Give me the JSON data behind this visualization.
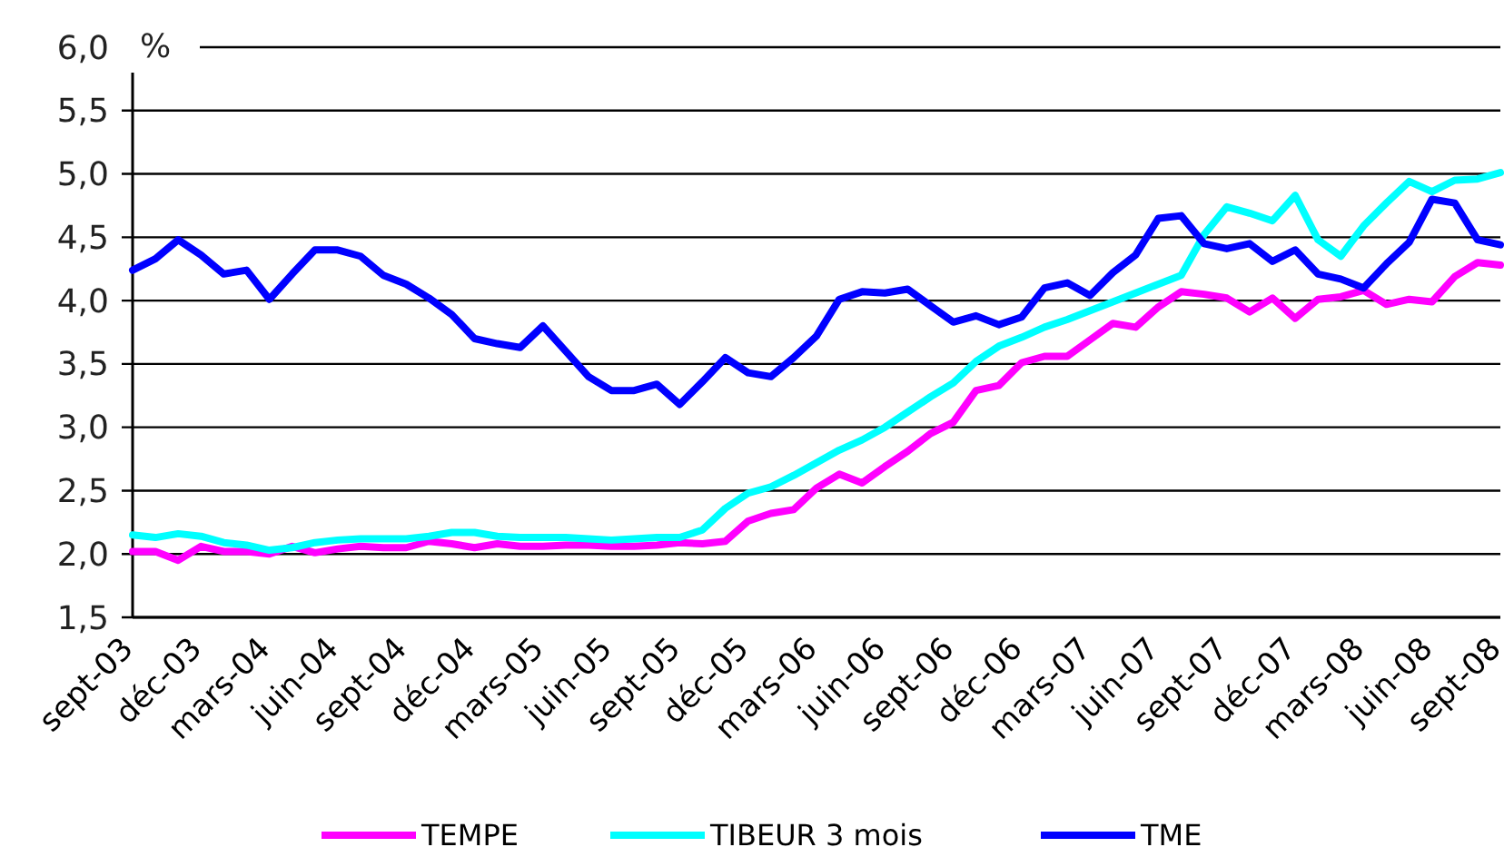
{
  "chart_data": {
    "type": "line",
    "ylabel": "%",
    "categories": [
      "sept-03",
      null,
      null,
      "déc-03",
      null,
      null,
      "mars-04",
      null,
      null,
      "juin-04",
      null,
      null,
      "sept-04",
      null,
      null,
      "déc-04",
      null,
      null,
      "mars-05",
      null,
      null,
      "juin-05",
      null,
      null,
      "sept-05",
      null,
      null,
      "déc-05",
      null,
      null,
      "mars-06",
      null,
      null,
      "juin-06",
      null,
      null,
      "sept-06",
      null,
      null,
      "déc-06",
      null,
      null,
      "mars-07",
      null,
      null,
      "juin-07",
      null,
      null,
      "sept-07",
      null,
      null,
      "déc-07",
      null,
      null,
      "mars-08",
      null,
      null,
      "juin-08",
      null,
      null,
      "sept-08"
    ],
    "series": [
      {
        "name": "TEMPE",
        "color": "#ff00ff",
        "values": [
          2.02,
          2.02,
          1.95,
          2.06,
          2.02,
          2.02,
          2.0,
          2.06,
          2.01,
          2.04,
          2.06,
          2.05,
          2.05,
          2.1,
          2.08,
          2.05,
          2.08,
          2.06,
          2.06,
          2.07,
          2.07,
          2.06,
          2.06,
          2.07,
          2.09,
          2.08,
          2.1,
          2.26,
          2.32,
          2.35,
          2.52,
          2.63,
          2.56,
          2.69,
          2.81,
          2.95,
          3.04,
          3.29,
          3.33,
          3.51,
          3.56,
          3.56,
          3.69,
          3.82,
          3.79,
          3.95,
          4.07,
          4.05,
          4.02,
          3.91,
          4.02,
          3.86,
          4.01,
          4.03,
          4.08,
          3.97,
          4.01,
          3.99,
          4.19,
          4.3,
          4.28
        ]
      },
      {
        "name": "TIBEUR 3 mois",
        "color": "#00ffff",
        "values": [
          2.15,
          2.13,
          2.16,
          2.14,
          2.09,
          2.07,
          2.03,
          2.05,
          2.09,
          2.11,
          2.12,
          2.12,
          2.12,
          2.14,
          2.17,
          2.17,
          2.14,
          2.13,
          2.13,
          2.13,
          2.12,
          2.11,
          2.12,
          2.13,
          2.13,
          2.19,
          2.36,
          2.48,
          2.53,
          2.62,
          2.72,
          2.82,
          2.9,
          3.0,
          3.12,
          3.24,
          3.35,
          3.52,
          3.64,
          3.71,
          3.79,
          3.85,
          3.92,
          3.99,
          4.06,
          4.13,
          4.2,
          4.52,
          4.74,
          4.69,
          4.63,
          4.83,
          4.48,
          4.35,
          4.59,
          4.77,
          4.94,
          4.86,
          4.95,
          4.96,
          5.01
        ]
      },
      {
        "name": "TME",
        "color": "#0000ff",
        "values": [
          4.24,
          4.33,
          4.48,
          4.36,
          4.21,
          4.24,
          4.01,
          4.21,
          4.4,
          4.4,
          4.35,
          4.2,
          4.13,
          4.02,
          3.89,
          3.7,
          3.66,
          3.63,
          3.8,
          3.6,
          3.4,
          3.29,
          3.29,
          3.34,
          3.18,
          3.36,
          3.55,
          3.43,
          3.4,
          3.55,
          3.72,
          4.01,
          4.07,
          4.06,
          4.09,
          3.96,
          3.83,
          3.88,
          3.81,
          3.87,
          4.1,
          4.14,
          4.04,
          4.22,
          4.36,
          4.65,
          4.67,
          4.45,
          4.41,
          4.45,
          4.31,
          4.4,
          4.21,
          4.17,
          4.1,
          4.29,
          4.46,
          4.8,
          4.77,
          4.48,
          4.44
        ]
      }
    ],
    "ylim": [
      1.5,
      6.0
    ],
    "yticks": [
      {
        "value": 1.5,
        "label": "1,5"
      },
      {
        "value": 2.0,
        "label": "2,0"
      },
      {
        "value": 2.5,
        "label": "2,5"
      },
      {
        "value": 3.0,
        "label": "3,0"
      },
      {
        "value": 3.5,
        "label": "3,5"
      },
      {
        "value": 4.0,
        "label": "4,0"
      },
      {
        "value": 4.5,
        "label": "4,5"
      },
      {
        "value": 5.0,
        "label": "5,0"
      },
      {
        "value": 5.5,
        "label": "5,5"
      },
      {
        "value": 6.0,
        "label": "6,0"
      }
    ],
    "grid": "y",
    "legend": "bottom",
    "marker": "none",
    "line_style": "solid"
  }
}
